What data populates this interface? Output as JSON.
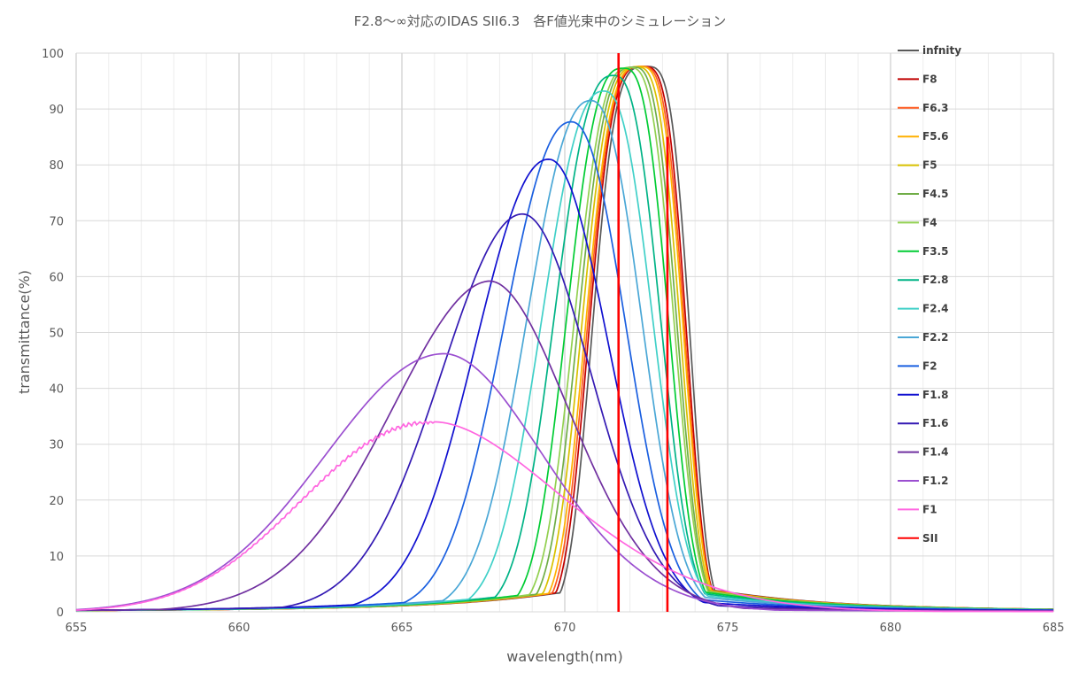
{
  "chart_data": {
    "type": "line",
    "title": "F2.8～∞対応のIDAS SII6.3　各F値光束中のシミュレーション",
    "xlabel": "wavelength(nm)",
    "ylabel": "transmittance(%)",
    "xlim": [
      655,
      685
    ],
    "ylim": [
      0,
      100
    ],
    "x_ticks": [
      655,
      660,
      665,
      670,
      675,
      680,
      685
    ],
    "y_ticks": [
      0,
      10,
      20,
      30,
      40,
      50,
      60,
      70,
      80,
      90,
      100
    ],
    "x_minor_step": 1,
    "grid": true,
    "legend_position": "right",
    "series": [
      {
        "name": "infnity",
        "color": "#595959",
        "shape": "gauss",
        "peak": 97.6,
        "center": 672.5,
        "left_sigma": 1.68,
        "right_sigma": 1.35,
        "left_p": 3.5,
        "right_p": 3.5,
        "tail_width": 4.0,
        "tail_frac": 0.05
      },
      {
        "name": "F8",
        "color": "#c00000",
        "shape": "gauss",
        "peak": 97.6,
        "center": 672.4,
        "left_sigma": 1.68,
        "right_sigma": 1.35,
        "left_p": 3.4,
        "right_p": 3.4,
        "tail_width": 4.0,
        "tail_frac": 0.05
      },
      {
        "name": "F6.3",
        "color": "#ff5a1f",
        "shape": "gauss",
        "peak": 97.6,
        "center": 672.35,
        "left_sigma": 1.69,
        "right_sigma": 1.35,
        "left_p": 3.3,
        "right_p": 3.3,
        "tail_width": 4.0,
        "tail_frac": 0.05
      },
      {
        "name": "F5.6",
        "color": "#ffb000",
        "shape": "gauss",
        "peak": 97.6,
        "center": 672.3,
        "left_sigma": 1.7,
        "right_sigma": 1.36,
        "left_p": 3.2,
        "right_p": 3.2,
        "tail_width": 4.0,
        "tail_frac": 0.05
      },
      {
        "name": "F5",
        "color": "#d8c100",
        "shape": "gauss",
        "peak": 97.5,
        "center": 672.2,
        "left_sigma": 1.72,
        "right_sigma": 1.37,
        "left_p": 3.1,
        "right_p": 3.1,
        "tail_width": 4.0,
        "tail_frac": 0.05
      },
      {
        "name": "F4.5",
        "color": "#70ad47",
        "shape": "gauss",
        "peak": 97.5,
        "center": 672.1,
        "left_sigma": 1.74,
        "right_sigma": 1.38,
        "left_p": 3.0,
        "right_p": 3.0,
        "tail_width": 4.0,
        "tail_frac": 0.05
      },
      {
        "name": "F4",
        "color": "#92d050",
        "shape": "gauss",
        "peak": 97.4,
        "center": 672.0,
        "left_sigma": 1.77,
        "right_sigma": 1.4,
        "left_p": 2.9,
        "right_p": 2.9,
        "tail_width": 4.0,
        "tail_frac": 0.05
      },
      {
        "name": "F3.5",
        "color": "#00cc33",
        "shape": "gauss",
        "peak": 97.3,
        "center": 671.8,
        "left_sigma": 1.82,
        "right_sigma": 1.44,
        "left_p": 2.8,
        "right_p": 2.8,
        "tail_width": 4.0,
        "tail_frac": 0.05
      },
      {
        "name": "F2.8",
        "color": "#00b386",
        "shape": "gauss",
        "peak": 96.0,
        "center": 671.5,
        "left_sigma": 1.93,
        "right_sigma": 1.52,
        "left_p": 2.6,
        "right_p": 2.6,
        "tail_width": 4.0,
        "tail_frac": 0.05
      },
      {
        "name": "F2.4",
        "color": "#40d0c8",
        "shape": "gauss",
        "peak": 93.2,
        "center": 671.2,
        "left_sigma": 2.06,
        "right_sigma": 1.62,
        "left_p": 2.4,
        "right_p": 2.4,
        "tail_width": 4.0,
        "tail_frac": 0.05
      },
      {
        "name": "F2.2",
        "color": "#4aa7d6",
        "shape": "gauss",
        "peak": 91.5,
        "center": 670.8,
        "left_sigma": 2.16,
        "right_sigma": 1.72,
        "left_p": 2.3,
        "right_p": 2.3,
        "tail_width": 4.0,
        "tail_frac": 0.05
      },
      {
        "name": "F2",
        "color": "#1a5fe0",
        "shape": "gauss",
        "peak": 87.7,
        "center": 670.2,
        "left_sigma": 2.32,
        "right_sigma": 1.88,
        "left_p": 2.2,
        "right_p": 2.2,
        "tail_width": 4.0,
        "tail_frac": 0.05
      },
      {
        "name": "F1.8",
        "color": "#1010d0",
        "shape": "gauss",
        "peak": 81.0,
        "center": 669.5,
        "left_sigma": 2.55,
        "right_sigma": 2.1,
        "left_p": 2.1,
        "right_p": 2.1,
        "tail_width": 4.0,
        "tail_frac": 0.05
      },
      {
        "name": "F1.6",
        "color": "#3319b3",
        "shape": "gauss",
        "peak": 71.2,
        "center": 668.7,
        "left_sigma": 2.9,
        "right_sigma": 2.45,
        "left_p": 2.0,
        "right_p": 2.0,
        "tail_width": 4.0,
        "tail_frac": 0.05
      },
      {
        "name": "F1.4",
        "color": "#7030a0",
        "shape": "gauss",
        "peak": 59.2,
        "center": 667.7,
        "left_sigma": 3.6,
        "right_sigma": 2.9,
        "left_p": 1.9,
        "right_p": 1.9,
        "tail_width": 4.0,
        "tail_frac": 0.05
      },
      {
        "name": "F1.2",
        "color": "#9b4fd0",
        "shape": "gauss",
        "peak": 46.2,
        "center": 666.3,
        "left_sigma": 4.3,
        "right_sigma": 3.6,
        "left_p": 2.0,
        "right_p": 1.9,
        "tail_width": 4.0,
        "tail_frac": 0.05
      },
      {
        "name": "F1",
        "color": "#ff66e0",
        "shape": "plateau",
        "peak": 34.0,
        "center": 666.0,
        "left_sigma": 4.6,
        "right_sigma": 4.7,
        "left_p": 2.2,
        "right_p": 1.8,
        "tail_width": 4.0,
        "tail_frac": 0.04,
        "noisy": true
      },
      {
        "name": "SII",
        "color": "#ff0000",
        "shape": "vlines",
        "x_values": [
          671.65,
          673.15
        ],
        "y_values": [
          100,
          85
        ]
      }
    ]
  }
}
